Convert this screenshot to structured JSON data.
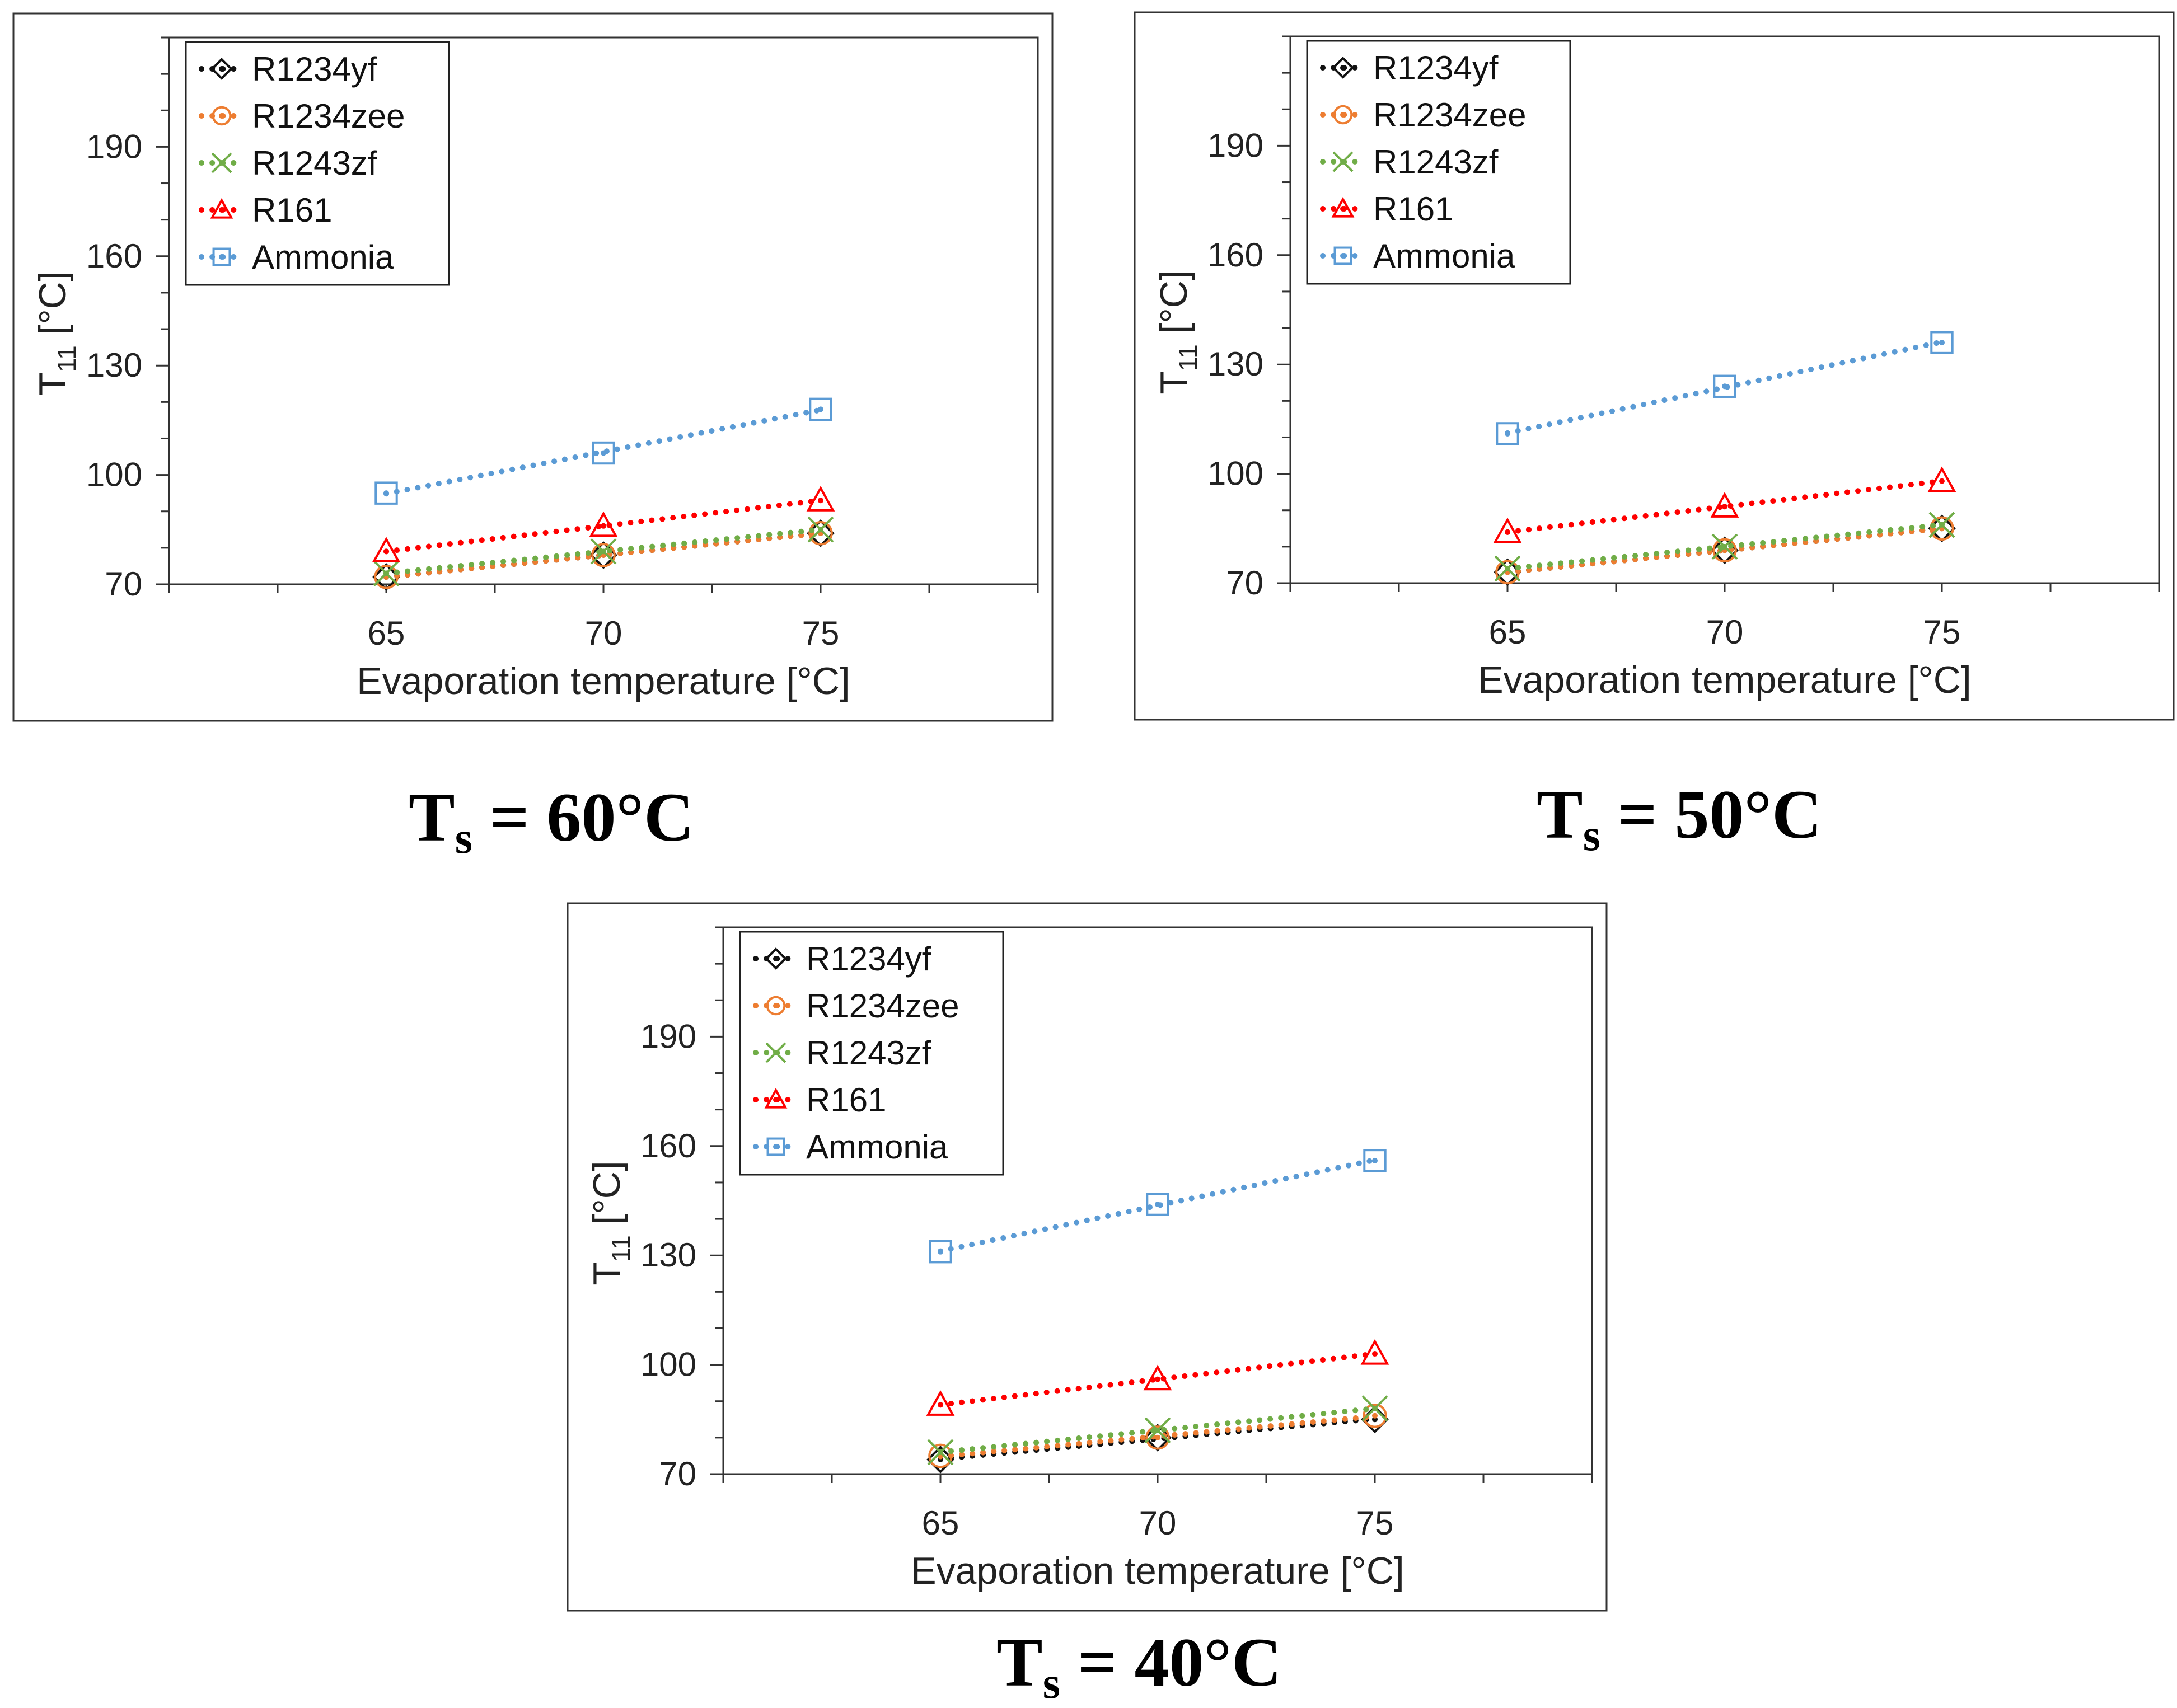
{
  "figure": {
    "captions": [
      {
        "prefix": "T",
        "sub": "s",
        "text": " = 60°C"
      },
      {
        "prefix": "T",
        "sub": "s",
        "text": " = 50°C"
      },
      {
        "prefix": "T",
        "sub": "s",
        "text": " = 40°C"
      }
    ]
  },
  "chart_data": [
    {
      "type": "scatter",
      "title": "",
      "caption": "Ts = 60°C",
      "xlabel": "Evaporation temperature [°C]",
      "ylabel_main": "T",
      "ylabel_sub": "11",
      "ylabel_unit": " [°C]",
      "xlim": [
        60,
        80
      ],
      "ylim": [
        70,
        220
      ],
      "x_ticks": [
        65,
        70,
        75
      ],
      "y_ticks": [
        70,
        100,
        130,
        160,
        190
      ],
      "x": [
        65,
        70,
        75
      ],
      "trendline": "dotted linear",
      "legend_position": "top-left",
      "series": [
        {
          "name": "R1234yf",
          "color": "#111111",
          "marker": "diamond",
          "values": [
            72,
            78,
            84
          ]
        },
        {
          "name": "R1234zee",
          "color": "#ed7d31",
          "marker": "circle",
          "values": [
            72,
            78,
            84
          ]
        },
        {
          "name": "R1243zf",
          "color": "#70ad47",
          "marker": "x",
          "values": [
            73,
            79,
            85
          ]
        },
        {
          "name": "R161",
          "color": "#ff0000",
          "marker": "triangle",
          "values": [
            79,
            86,
            93
          ]
        },
        {
          "name": "Ammonia",
          "color": "#5b9bd5",
          "marker": "square",
          "values": [
            95,
            106,
            118
          ]
        }
      ]
    },
    {
      "type": "scatter",
      "title": "",
      "caption": "Ts = 50°C",
      "xlabel": "Evaporation temperature [°C]",
      "ylabel_main": "T",
      "ylabel_sub": "11",
      "ylabel_unit": " [°C]",
      "xlim": [
        60,
        80
      ],
      "ylim": [
        70,
        220
      ],
      "x_ticks": [
        65,
        70,
        75
      ],
      "y_ticks": [
        70,
        100,
        130,
        160,
        190
      ],
      "x": [
        65,
        70,
        75
      ],
      "trendline": "dotted linear",
      "legend_position": "top-left",
      "series": [
        {
          "name": "R1234yf",
          "color": "#111111",
          "marker": "diamond",
          "values": [
            73,
            79,
            85
          ]
        },
        {
          "name": "R1234zee",
          "color": "#ed7d31",
          "marker": "circle",
          "values": [
            73,
            79,
            85
          ]
        },
        {
          "name": "R1243zf",
          "color": "#70ad47",
          "marker": "x",
          "values": [
            74,
            80,
            86
          ]
        },
        {
          "name": "R161",
          "color": "#ff0000",
          "marker": "triangle",
          "values": [
            84,
            91,
            98
          ]
        },
        {
          "name": "Ammonia",
          "color": "#5b9bd5",
          "marker": "square",
          "values": [
            111,
            124,
            136
          ]
        }
      ]
    },
    {
      "type": "scatter",
      "title": "",
      "caption": "Ts = 40°C",
      "xlabel": "Evaporation temperature [°C]",
      "ylabel_main": "T",
      "ylabel_sub": "11",
      "ylabel_unit": " [°C]",
      "xlim": [
        60,
        80
      ],
      "ylim": [
        70,
        220
      ],
      "x_ticks": [
        65,
        70,
        75
      ],
      "y_ticks": [
        70,
        100,
        130,
        160,
        190
      ],
      "x": [
        65,
        70,
        75
      ],
      "trendline": "dotted linear",
      "legend_position": "top-left",
      "series": [
        {
          "name": "R1234yf",
          "color": "#111111",
          "marker": "diamond",
          "values": [
            74,
            80,
            85
          ]
        },
        {
          "name": "R1234zee",
          "color": "#ed7d31",
          "marker": "circle",
          "values": [
            75,
            80,
            86
          ]
        },
        {
          "name": "R1243zf",
          "color": "#70ad47",
          "marker": "x",
          "values": [
            76,
            82,
            88
          ]
        },
        {
          "name": "R161",
          "color": "#ff0000",
          "marker": "triangle",
          "values": [
            89,
            96,
            103
          ]
        },
        {
          "name": "Ammonia",
          "color": "#5b9bd5",
          "marker": "square",
          "values": [
            131,
            144,
            156
          ]
        }
      ]
    }
  ]
}
